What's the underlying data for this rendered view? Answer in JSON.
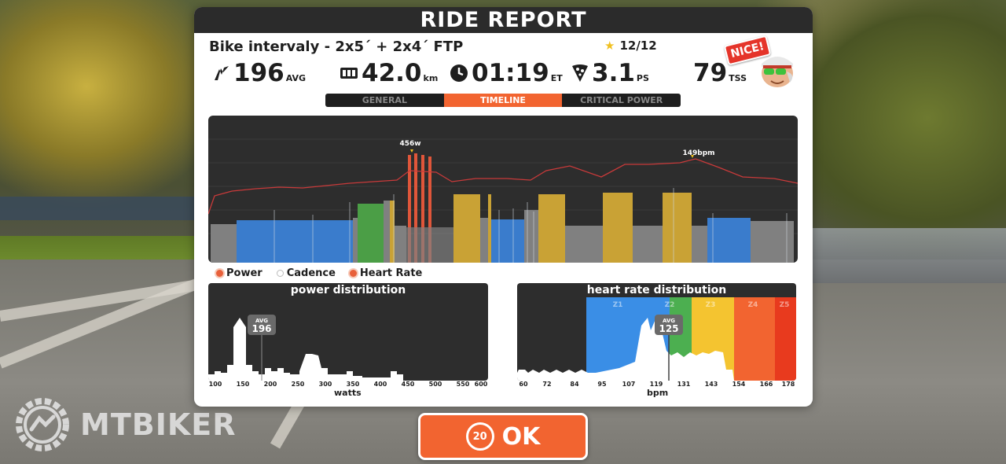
{
  "header": {
    "title": "RIDE REPORT"
  },
  "ride": {
    "name": "Bike intervaly - 2x5´ + 2x4´ FTP",
    "stars": "12/12"
  },
  "stats": {
    "power": {
      "value": "196",
      "unit": "AVG",
      "icon": "power-bolt-icon"
    },
    "distance": {
      "value": "42.0",
      "unit": "km",
      "icon": "odometer-icon"
    },
    "time": {
      "value": "01:19",
      "unit": "ET",
      "icon": "clock-icon"
    },
    "pizza": {
      "value": "3.1",
      "unit": "PS",
      "icon": "pizza-slice-icon"
    },
    "tss": {
      "value": "79",
      "unit": "TSS"
    }
  },
  "badge": {
    "text": "NICE!"
  },
  "tabs": [
    {
      "label": "GENERAL",
      "active": false
    },
    {
      "label": "TIMELINE",
      "active": true
    },
    {
      "label": "CRITICAL POWER",
      "active": false
    }
  ],
  "timeline": {
    "peak_power_label": "456w",
    "peak_hr_label": "149bpm"
  },
  "legend": [
    {
      "label": "Power",
      "color": "#e8603a",
      "ring": true
    },
    {
      "label": "Cadence",
      "color": "#ffffff",
      "ring": false
    },
    {
      "label": "Heart Rate",
      "color": "#e8603a",
      "ring": true
    }
  ],
  "power_distribution": {
    "title": "power distribution",
    "avg_label": "AVG",
    "avg_value": "196",
    "ticks": [
      "100",
      "150",
      "200",
      "250",
      "300",
      "350",
      "400",
      "450",
      "500",
      "550",
      "600"
    ],
    "xlabel": "watts"
  },
  "hr_distribution": {
    "title": "heart rate distribution",
    "avg_label": "AVG",
    "avg_value": "125",
    "zones": [
      "Z1",
      "Z2",
      "Z3",
      "Z4",
      "Z5"
    ],
    "zone_colors": [
      "#3a8ee6",
      "#4caf50",
      "#f4c430",
      "#f26430",
      "#e83a1e"
    ],
    "ticks": [
      "60",
      "72",
      "84",
      "95",
      "107",
      "119",
      "131",
      "143",
      "154",
      "166",
      "178"
    ],
    "xlabel": "bpm"
  },
  "ok_button": {
    "label": "OK",
    "countdown": "20"
  },
  "watermark": {
    "text": "MTBIKER"
  },
  "colors": {
    "accent": "#f26430",
    "zone_grey": "#808080",
    "zone_blue": "#3a7ccc",
    "zone_green": "#4b9e46",
    "zone_yellow": "#c9a235",
    "zone_red": "#e0563a",
    "hr_line": "#c83a3a"
  }
}
